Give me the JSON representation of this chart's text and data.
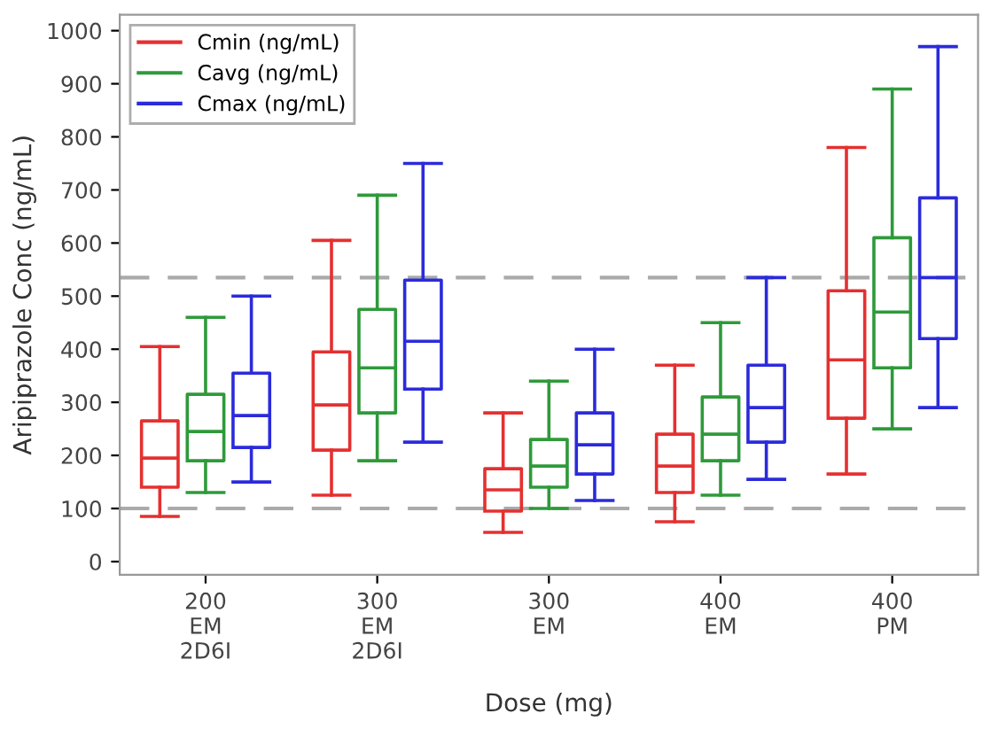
{
  "chart_data": {
    "type": "box",
    "xlabel": "Dose (mg)",
    "ylabel": "Aripiprazole Conc (ng/mL)",
    "categories": [
      "200\nEM\n2D6I",
      "300\nEM\n2D6I",
      "300\nEM",
      "400\nEM",
      "400\nPM"
    ],
    "series": [
      {
        "name": "Cmin (ng/mL)",
        "color": "#e53030",
        "boxes": [
          {
            "low": 85,
            "q1": 140,
            "median": 195,
            "q3": 265,
            "high": 405
          },
          {
            "low": 125,
            "q1": 210,
            "median": 295,
            "q3": 395,
            "high": 605
          },
          {
            "low": 55,
            "q1": 95,
            "median": 135,
            "q3": 175,
            "high": 280
          },
          {
            "low": 75,
            "q1": 130,
            "median": 180,
            "q3": 240,
            "high": 370
          },
          {
            "low": 165,
            "q1": 270,
            "median": 380,
            "q3": 510,
            "high": 780
          }
        ]
      },
      {
        "name": "Cavg (ng/mL)",
        "color": "#2e9a3a",
        "boxes": [
          {
            "low": 130,
            "q1": 190,
            "median": 245,
            "q3": 315,
            "high": 460
          },
          {
            "low": 190,
            "q1": 280,
            "median": 365,
            "q3": 475,
            "high": 690
          },
          {
            "low": 100,
            "q1": 140,
            "median": 180,
            "q3": 230,
            "high": 340
          },
          {
            "low": 125,
            "q1": 190,
            "median": 240,
            "q3": 310,
            "high": 450
          },
          {
            "low": 250,
            "q1": 365,
            "median": 470,
            "q3": 610,
            "high": 890
          }
        ]
      },
      {
        "name": "Cmax (ng/mL)",
        "color": "#2b2bdb",
        "boxes": [
          {
            "low": 150,
            "q1": 215,
            "median": 275,
            "q3": 355,
            "high": 500
          },
          {
            "low": 225,
            "q1": 325,
            "median": 415,
            "q3": 530,
            "high": 750
          },
          {
            "low": 115,
            "q1": 165,
            "median": 220,
            "q3": 280,
            "high": 400
          },
          {
            "low": 155,
            "q1": 225,
            "median": 290,
            "q3": 370,
            "high": 535
          },
          {
            "low": 290,
            "q1": 420,
            "median": 535,
            "q3": 685,
            "high": 970
          }
        ]
      }
    ],
    "ylim": [
      -25,
      1030
    ],
    "yticks": [
      0,
      100,
      200,
      300,
      400,
      500,
      600,
      700,
      800,
      900,
      1000
    ],
    "ref_lines": [
      {
        "axis": "y",
        "value": 100,
        "label": null,
        "color": "#aaaaaa",
        "line_style": "dashed"
      },
      {
        "axis": "y",
        "value": 535,
        "label": null,
        "color": "#aaaaaa",
        "line_style": "dashed"
      }
    ],
    "legend": "top left",
    "grid": false
  }
}
